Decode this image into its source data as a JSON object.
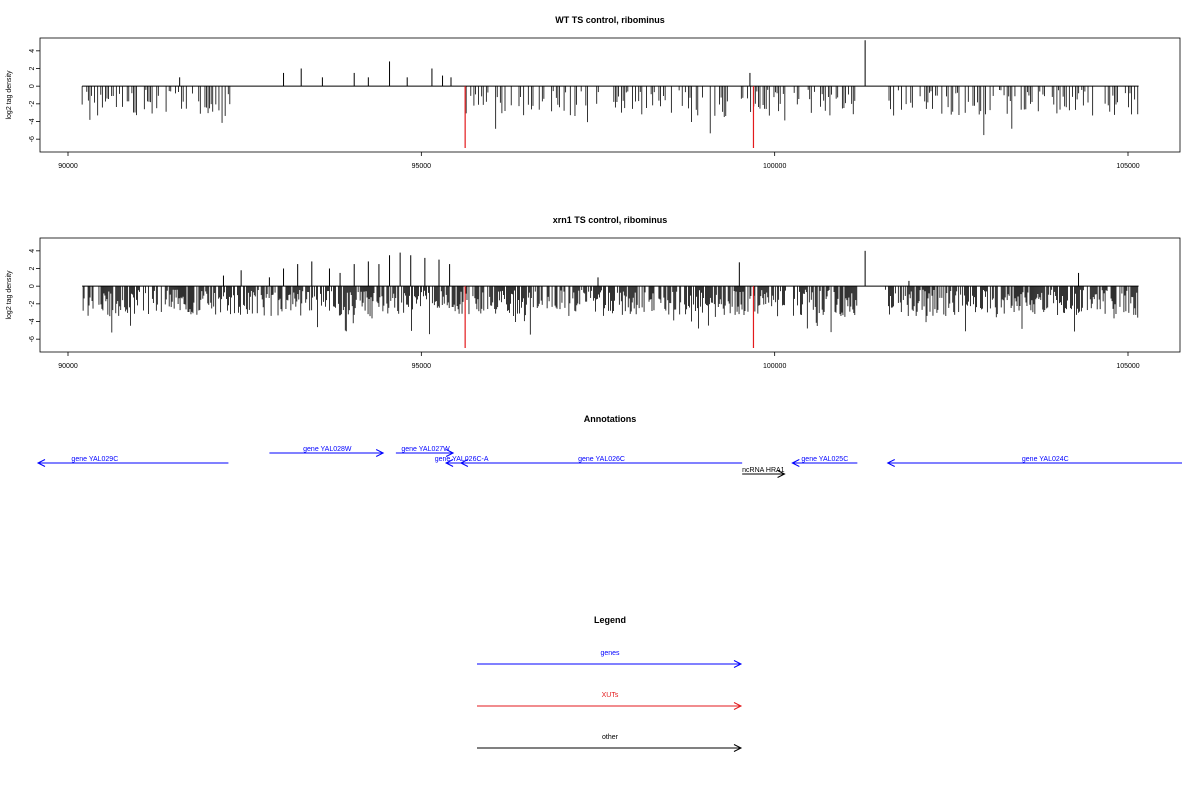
{
  "chart_data": [
    {
      "type": "bar",
      "title": "WT TS control, ribominus",
      "ylabel": "log2 tag density",
      "xlim": [
        90000,
        105000
      ],
      "ylim": [
        -7,
        5
      ],
      "xticks": [
        90000,
        95000,
        100000,
        105000
      ],
      "yticks": [
        4,
        2,
        0,
        -2,
        -4,
        -6
      ],
      "highlight_color": "#e31a1c",
      "highlight_x": [
        95620,
        99700
      ],
      "highlight_y": -7,
      "series": [
        {
          "values_x": [
            91580,
            93050,
            93300,
            93600,
            94050,
            94250,
            94550,
            94800,
            95150,
            95300,
            95420,
            99650,
            101280
          ],
          "values_y": [
            1.0,
            1.5,
            2.0,
            1.0,
            1.5,
            1.0,
            2.8,
            1.0,
            2.0,
            1.2,
            1.0,
            1.5,
            5.2
          ]
        }
      ]
    },
    {
      "type": "bar",
      "title": "xrn1 TS control, ribominus",
      "ylabel": "log2 tag density",
      "xlim": [
        90000,
        105000
      ],
      "ylim": [
        -7,
        5
      ],
      "xticks": [
        90000,
        95000,
        100000,
        105000
      ],
      "yticks": [
        4,
        2,
        0,
        -2,
        -4,
        -6
      ],
      "highlight_color": "#e31a1c",
      "highlight_x": [
        95620,
        99700
      ],
      "highlight_y": -7,
      "series": [
        {
          "values_x": [
            92200,
            92450,
            92850,
            93050,
            93250,
            93450,
            93700,
            93850,
            94050,
            94250,
            94400,
            94550,
            94700,
            94850,
            95050,
            95250,
            95400,
            97500,
            99500,
            101280,
            101900,
            104300
          ],
          "values_y": [
            1.2,
            1.8,
            1.0,
            2.0,
            2.5,
            2.8,
            2.0,
            1.5,
            2.5,
            2.8,
            2.5,
            3.5,
            3.8,
            3.5,
            3.2,
            3.0,
            2.5,
            1.0,
            2.7,
            4.0,
            0.6,
            1.5
          ]
        }
      ]
    }
  ],
  "annotations": {
    "title": "Annotations",
    "features": [
      {
        "label": "gene YAL029C",
        "start": 89550,
        "end": 92270,
        "row": 1,
        "strand": "-",
        "color": "#0000ff",
        "label_x": 90380
      },
      {
        "label": "gene YAL028W",
        "start": 92850,
        "end": 94460,
        "row": 0,
        "strand": "+",
        "color": "#0000ff",
        "label_x": 93670
      },
      {
        "label": "gene YAL027W",
        "start": 94640,
        "end": 95450,
        "row": 0,
        "strand": "+",
        "color": "#0000ff",
        "label_x": 95060
      },
      {
        "label": "gene YAL026C-A",
        "start": 95350,
        "end": 95660,
        "row": 1,
        "strand": "-",
        "color": "#0000ff",
        "label_x": 95570
      },
      {
        "label": "gene YAL026C",
        "start": 95560,
        "end": 99540,
        "row": 1,
        "strand": "-",
        "color": "#0000ff",
        "label_x": 97550
      },
      {
        "label": "ncRNA HRA1",
        "start": 99540,
        "end": 100140,
        "row": 2,
        "strand": "+",
        "color": "#000000",
        "label_x": 99840
      },
      {
        "label": "gene YAL025C",
        "start": 100250,
        "end": 101170,
        "row": 1,
        "strand": "-",
        "color": "#0000ff",
        "label_x": 100710
      },
      {
        "label": "gene YAL024C",
        "start": 101600,
        "end": 106050,
        "row": 1,
        "strand": "-",
        "color": "#0000ff",
        "label_x": 103830
      }
    ]
  },
  "legend": {
    "title": "Legend",
    "items": [
      {
        "label": "genes",
        "color": "#0000ff"
      },
      {
        "label": "XUTs",
        "color": "#e31a1c"
      },
      {
        "label": "other",
        "color": "#000000"
      }
    ]
  }
}
